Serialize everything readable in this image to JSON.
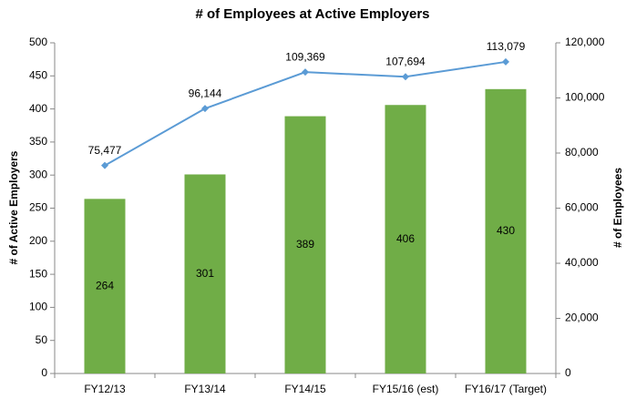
{
  "chart_data": {
    "type": "bar",
    "title": "# of Employees at Active Employers",
    "ylabel": "# of Active Employers",
    "y2label": "# of Employees",
    "categories": [
      "FY12/13",
      "FY13/14",
      "FY14/15",
      "FY15/16 (est)",
      "FY16/17 (Target)"
    ],
    "series": [
      {
        "type": "bar",
        "color": "#70ad47",
        "values": [
          264,
          301,
          389,
          406,
          430
        ]
      },
      {
        "type": "line",
        "color": "#5b9bd5",
        "axis": "y2",
        "values": [
          75477,
          96144,
          109369,
          107694,
          113079
        ],
        "value_labels": [
          "75,477",
          "96,144",
          "109,369",
          "107,694",
          "113,079"
        ]
      }
    ],
    "ylim": [
      0,
      500
    ],
    "yticks": [
      0,
      50,
      100,
      150,
      200,
      250,
      300,
      350,
      400,
      450,
      500
    ],
    "y2lim": [
      0,
      120000
    ],
    "y2ticks": [
      0,
      {
        "value": 20000,
        "label": "20,000"
      },
      {
        "value": 40000,
        "label": "40,000"
      },
      {
        "value": 60000,
        "label": "60,000"
      },
      {
        "value": 80000,
        "label": "80,000"
      },
      {
        "value": 100000,
        "label": "100,000"
      },
      {
        "value": 120000,
        "label": "120,000"
      }
    ],
    "grid": false
  }
}
